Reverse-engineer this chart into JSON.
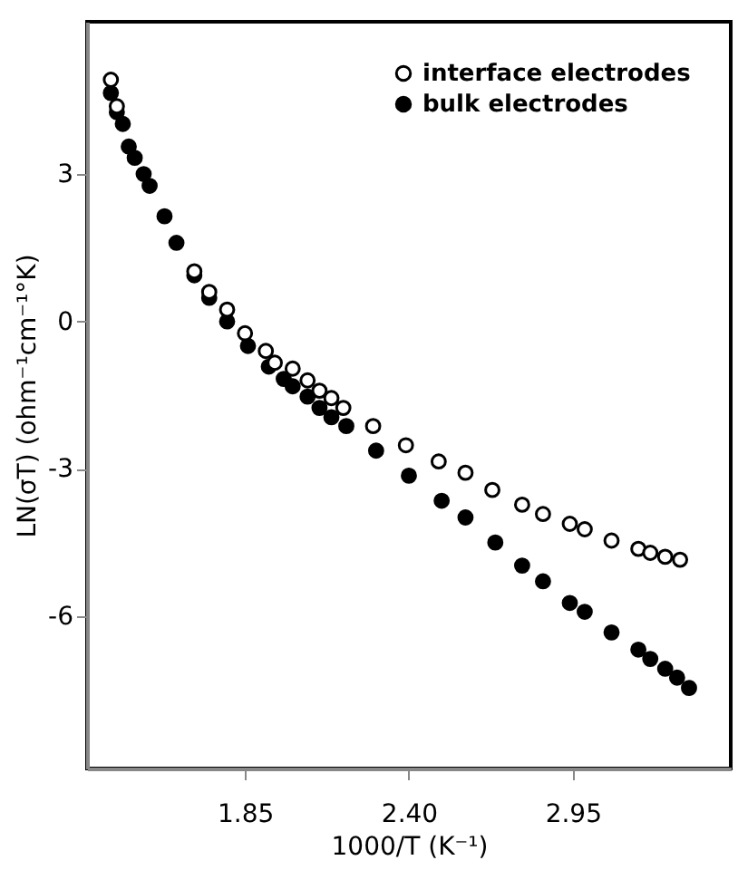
{
  "chart_data": {
    "type": "scatter",
    "xlabel": "1000/T   (K⁻¹)",
    "ylabel": "LN(σT)   (ohm⁻¹cm⁻¹°K)",
    "xlim": [
      1.32,
      3.48
    ],
    "ylim": [
      -9.1,
      6.1
    ],
    "xticks": [
      1.85,
      {
        "value": 2.4,
        "label": "2.40"
      },
      2.95
    ],
    "yticks": [
      -6,
      -3,
      0,
      3
    ],
    "grid": false,
    "legend": "top right",
    "marker": "circle",
    "series": [
      {
        "name": "interface electrodes",
        "color": "#000000",
        "x": [
          1.4,
          1.42,
          1.68,
          1.73,
          1.79,
          1.85,
          1.92,
          1.95,
          2.01,
          2.06,
          2.1,
          2.14,
          2.18,
          2.28,
          2.39,
          2.5,
          2.59,
          2.68,
          2.78,
          2.85,
          2.94,
          2.99,
          3.08,
          3.17,
          3.21,
          3.26,
          3.31
        ],
        "values": [
          4.92,
          4.38,
          1.02,
          0.6,
          0.24,
          -0.24,
          -0.6,
          -0.84,
          -0.96,
          -1.2,
          -1.41,
          -1.56,
          -1.76,
          -2.13,
          -2.52,
          -2.85,
          -3.08,
          -3.43,
          -3.73,
          -3.92,
          -4.12,
          -4.23,
          -4.46,
          -4.63,
          -4.71,
          -4.79,
          -4.85
        ]
      },
      {
        "name": "bulk electrodes",
        "color": "#000000",
        "x": [
          1.4,
          1.42,
          1.44,
          1.46,
          1.48,
          1.51,
          1.53,
          1.58,
          1.62,
          1.68,
          1.73,
          1.79,
          1.86,
          1.93,
          1.98,
          2.01,
          2.06,
          2.1,
          2.14,
          2.19,
          2.29,
          2.4,
          2.51,
          2.59,
          2.69,
          2.78,
          2.85,
          2.94,
          2.99,
          3.08,
          3.17,
          3.21,
          3.26,
          3.3,
          3.34
        ],
        "values": [
          4.65,
          4.26,
          4.02,
          3.56,
          3.33,
          3.0,
          2.76,
          2.14,
          1.6,
          0.94,
          0.48,
          0.0,
          -0.5,
          -0.92,
          -1.17,
          -1.32,
          -1.53,
          -1.76,
          -1.95,
          -2.13,
          -2.63,
          -3.14,
          -3.65,
          -3.99,
          -4.5,
          -4.97,
          -5.29,
          -5.73,
          -5.91,
          -6.33,
          -6.68,
          -6.87,
          -7.07,
          -7.25,
          -7.46
        ]
      }
    ]
  }
}
